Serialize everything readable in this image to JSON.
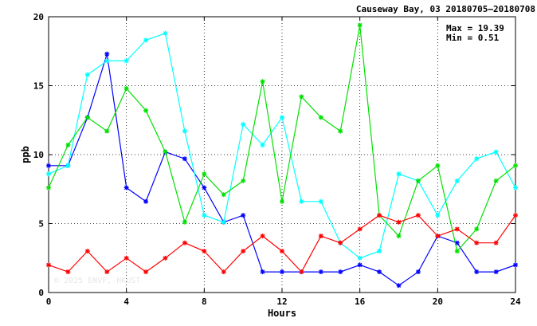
{
  "chart_data": {
    "type": "line",
    "title": "Causeway Bay, 03 20180705—20180708",
    "xlabel": "Hours",
    "ylabel": "ppb",
    "xlim": [
      0,
      24
    ],
    "ylim": [
      0,
      20
    ],
    "xticks": [
      0,
      4,
      8,
      12,
      16,
      20,
      24
    ],
    "yticks": [
      0,
      5,
      10,
      15,
      20
    ],
    "grid": true,
    "grid_style": "dotted",
    "stats": {
      "max_label": "Max = 19.39",
      "min_label": "Min =  0.51"
    },
    "watermark": "© 2025  ENVF, HKUST",
    "series": [
      {
        "color": "#0000ff",
        "marker": "asterisk",
        "x": [
          0,
          1,
          2,
          3,
          4,
          5,
          6,
          7,
          8,
          9,
          10,
          11,
          12,
          13,
          14,
          15,
          16,
          17,
          18,
          19,
          20,
          21,
          22,
          23,
          24
        ],
        "values": [
          9.2,
          9.2,
          12.7,
          17.3,
          7.6,
          6.6,
          10.2,
          9.7,
          7.6,
          5.1,
          5.6,
          1.5,
          1.5,
          1.5,
          1.5,
          1.5,
          2.0,
          1.5,
          0.51,
          1.5,
          4.1,
          3.6,
          1.5,
          1.5,
          2.0
        ]
      },
      {
        "color": "#00ffff",
        "marker": "asterisk",
        "x": [
          0,
          1,
          2,
          3,
          4,
          5,
          6,
          7,
          8,
          9,
          10,
          11,
          12,
          13,
          14,
          15,
          16,
          17,
          18,
          19,
          20,
          21,
          22,
          23,
          24
        ],
        "values": [
          8.6,
          9.2,
          15.8,
          16.8,
          16.8,
          18.3,
          18.8,
          11.7,
          5.6,
          5.1,
          12.2,
          10.7,
          12.7,
          6.6,
          6.6,
          3.6,
          2.5,
          3.0,
          8.6,
          8.1,
          5.6,
          8.1,
          9.7,
          10.2,
          7.6
        ]
      },
      {
        "color": "#00e000",
        "marker": "asterisk",
        "x": [
          0,
          1,
          2,
          3,
          4,
          5,
          6,
          7,
          8,
          9,
          10,
          11,
          12,
          13,
          14,
          15,
          16,
          17,
          18,
          19,
          20,
          21,
          22,
          23,
          24
        ],
        "values": [
          7.6,
          10.7,
          12.7,
          11.7,
          14.8,
          13.2,
          10.2,
          5.1,
          8.6,
          7.1,
          8.1,
          15.3,
          6.6,
          14.2,
          12.7,
          11.7,
          19.39,
          5.6,
          4.1,
          8.1,
          9.2,
          3.0,
          4.6,
          8.1,
          9.2
        ]
      },
      {
        "color": "#ff0000",
        "marker": "asterisk",
        "x": [
          0,
          1,
          2,
          3,
          4,
          5,
          6,
          7,
          8,
          9,
          10,
          11,
          12,
          13,
          14,
          15,
          16,
          17,
          18,
          19,
          20,
          21,
          22,
          23,
          24
        ],
        "values": [
          2.0,
          1.5,
          3.0,
          1.5,
          2.5,
          1.5,
          2.5,
          3.6,
          3.0,
          1.5,
          3.0,
          4.1,
          3.0,
          1.5,
          4.1,
          3.6,
          4.6,
          5.6,
          5.1,
          5.6,
          4.1,
          4.6,
          3.6,
          3.6,
          5.6
        ]
      }
    ]
  }
}
